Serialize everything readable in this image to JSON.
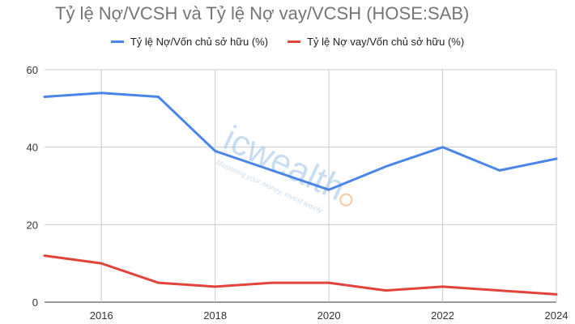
{
  "chart_data": {
    "type": "line",
    "title": "Tỷ lệ Nợ/VCSH và Tỷ lệ Nợ vay/VCSH (HOSE:SAB)",
    "x": [
      2015,
      2016,
      2017,
      2018,
      2019,
      2020,
      2021,
      2022,
      2023,
      2024
    ],
    "x_ticks": [
      "2016",
      "2018",
      "2020",
      "2022",
      "2024"
    ],
    "y_ticks": [
      "0",
      "20",
      "40",
      "60"
    ],
    "ylim": [
      0,
      60
    ],
    "xlim": [
      2015,
      2024
    ],
    "grid": true,
    "legend": "top",
    "series": [
      {
        "name": "Tỷ lệ Nợ/Vốn chủ sở hữu (%)",
        "color": "#4a86e8",
        "values": [
          53,
          54,
          53,
          39,
          34,
          29,
          35,
          40,
          34,
          37
        ]
      },
      {
        "name": "Tỷ lệ Nợ vay/Vốn chủ sở hữu (%)",
        "color": "#e0443a",
        "values": [
          12,
          10,
          5,
          4,
          5,
          5,
          3,
          4,
          3,
          2
        ]
      }
    ],
    "watermark": {
      "brand": "icwealth",
      "tagline": "Mastering your money, invest wisely"
    }
  }
}
